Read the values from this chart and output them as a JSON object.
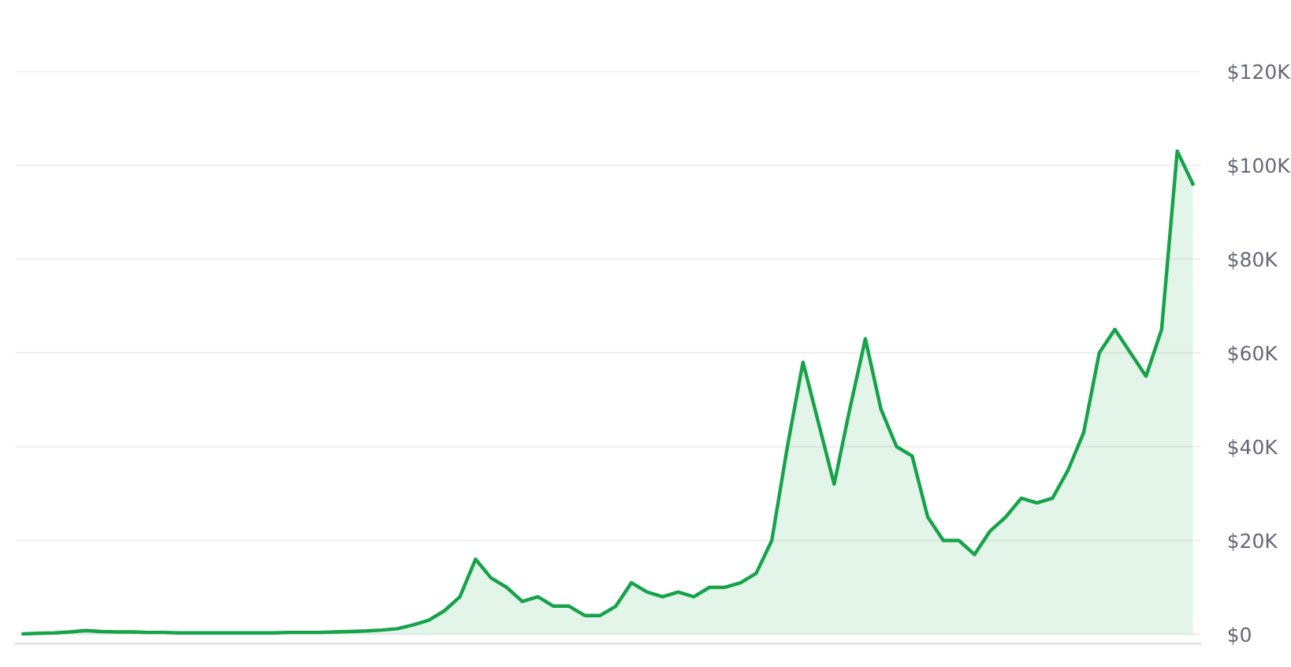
{
  "chart_data": {
    "type": "area",
    "categories": [
      null,
      null,
      null,
      null,
      null,
      null,
      null,
      null,
      null,
      null,
      null,
      null,
      null,
      null,
      null,
      null,
      null,
      null,
      null,
      null,
      null,
      null,
      null,
      null,
      null,
      null,
      null,
      null,
      null,
      null,
      null,
      null,
      null,
      null,
      null,
      null,
      null,
      null,
      null,
      null,
      null,
      null,
      null,
      null,
      null,
      null,
      null,
      null,
      null,
      null,
      null,
      null,
      null,
      null,
      null,
      null,
      null,
      null,
      null,
      null,
      null,
      null,
      null,
      null,
      null,
      null,
      null,
      null,
      null,
      null,
      null,
      null,
      null,
      null,
      null,
      null
    ],
    "series": [
      {
        "color": "#16a34a",
        "values": [
          100,
          200,
          300,
          500,
          800,
          600,
          500,
          500,
          400,
          400,
          300,
          300,
          300,
          300,
          300,
          300,
          300,
          400,
          400,
          400,
          500,
          600,
          700,
          900,
          1200,
          2000,
          3000,
          5000,
          8000,
          16000,
          12000,
          10000,
          7000,
          8000,
          6000,
          6000,
          4000,
          4000,
          6000,
          11000,
          9000,
          8000,
          9000,
          8000,
          10000,
          10000,
          11000,
          13000,
          20000,
          40000,
          58000,
          45000,
          32000,
          48000,
          63000,
          48000,
          40000,
          38000,
          25000,
          20000,
          20000,
          17000,
          22000,
          25000,
          29000,
          28000,
          29000,
          35000,
          43000,
          60000,
          65000,
          60000,
          55000,
          65000,
          103000,
          96000
        ]
      }
    ],
    "ylim": [
      -2000,
      120000
    ],
    "yticks": [
      {
        "value": 0,
        "label": "$0"
      },
      {
        "value": 20000,
        "label": "$20K"
      },
      {
        "value": 40000,
        "label": "$40K"
      },
      {
        "value": 60000,
        "label": "$60K"
      },
      {
        "value": 80000,
        "label": "$80K"
      },
      {
        "value": 100000,
        "label": "$100K"
      },
      {
        "value": 120000,
        "label": "$120K"
      }
    ],
    "grid": "y",
    "tick_labels": "y"
  }
}
